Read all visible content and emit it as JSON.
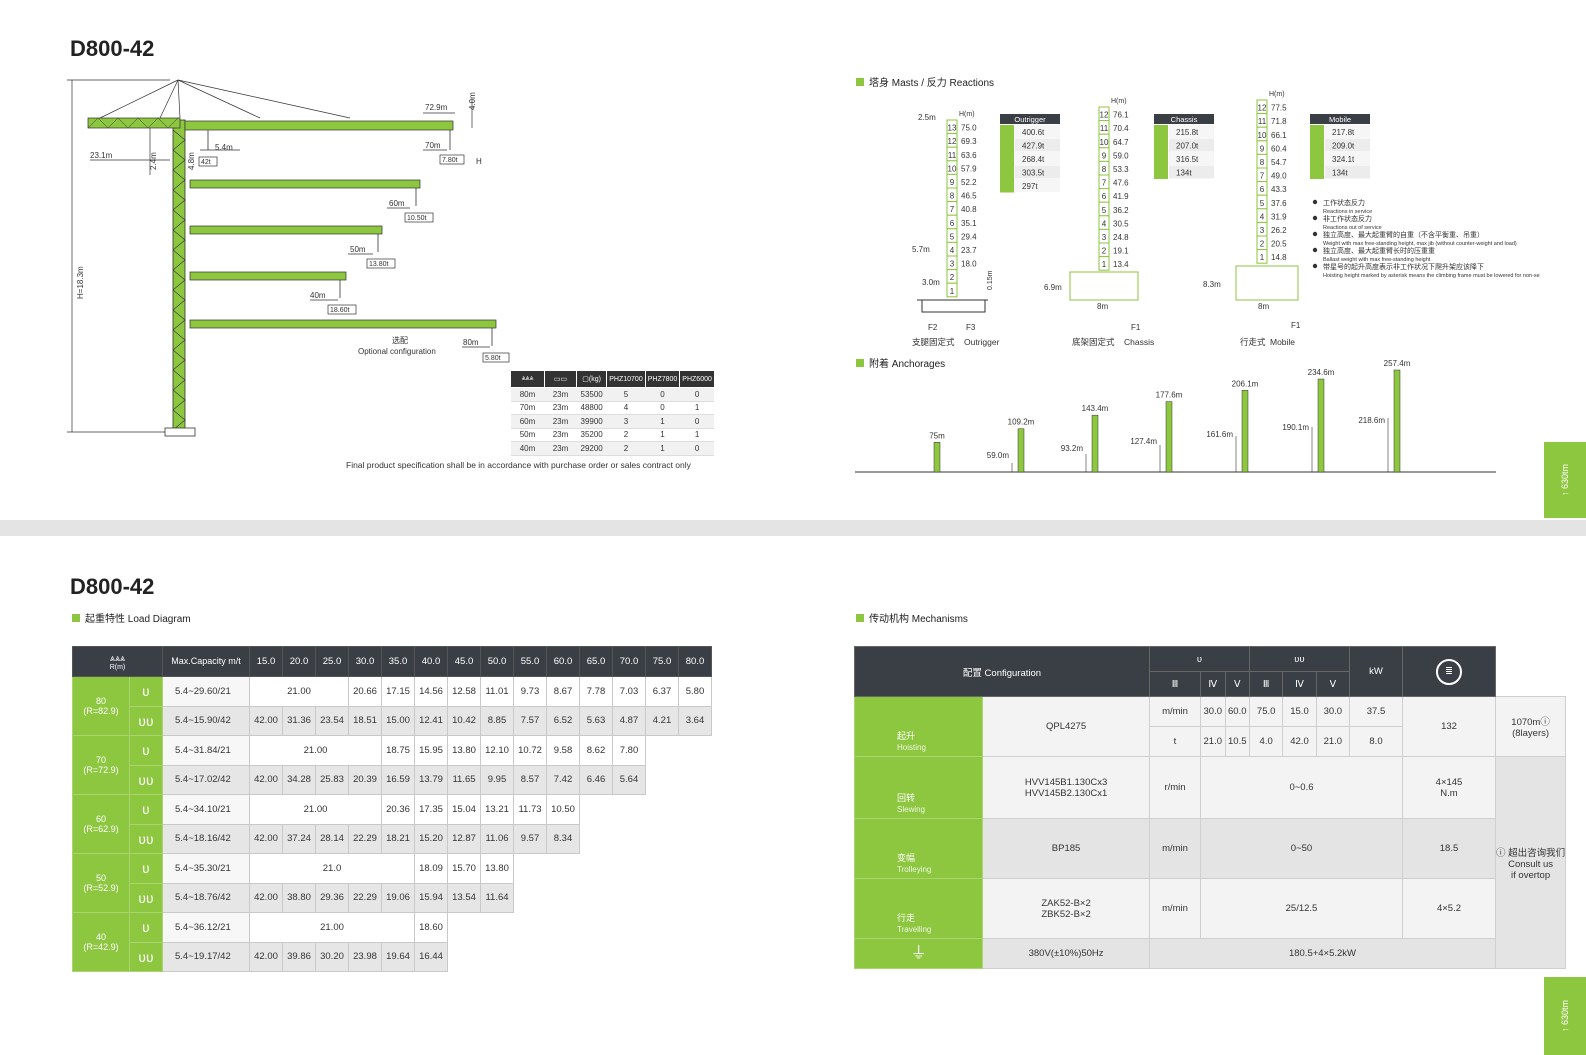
{
  "page1": {
    "title": "D800-42",
    "masts_section": "塔身 Masts / 反力 Reactions",
    "anchorages_section": "附着 Anchorages",
    "side_tab": "630tm",
    "crane": {
      "height_label": "H=18.3m",
      "mast_dim": "2.4m",
      "head_dim": "4.8m",
      "counter_jib": "23.1m",
      "tip_dim": "4.0m",
      "h_label": "H",
      "optional_cn": "选配",
      "optional_en": "Optional configuration",
      "jibs": [
        {
          "jib": "72.9m",
          "radius": "70m",
          "load": "7.80t",
          "near_dist": "5.4m",
          "near_load": "42t"
        },
        {
          "radius": "60m",
          "load": "10.50t"
        },
        {
          "radius": "50m",
          "load": "13.80t"
        },
        {
          "radius": "40m",
          "load": "18.60t"
        },
        {
          "radius": "80m",
          "load": "5.80t"
        }
      ]
    },
    "spec_table": {
      "headers": [
        "(kg)",
        "PHZ10700",
        "PHZ7800",
        "PHZ6000"
      ],
      "rows": [
        [
          "80m",
          "23m",
          "53500",
          "5",
          "0",
          "0"
        ],
        [
          "70m",
          "23m",
          "48800",
          "4",
          "0",
          "1"
        ],
        [
          "60m",
          "23m",
          "39900",
          "3",
          "1",
          "0"
        ],
        [
          "50m",
          "23m",
          "35200",
          "2",
          "1",
          "1"
        ],
        [
          "40m",
          "23m",
          "29200",
          "2",
          "1",
          "0"
        ]
      ]
    },
    "note": "Final product specification shall be in accordance with purchase order or sales contract only",
    "outrigger": {
      "label": "Outrigger",
      "caption_cn": "支腿固定式",
      "caption_en": "Outrigger",
      "hm": "H(m)",
      "top_dim": "2.5m",
      "mid_dim": "5.7m",
      "base_dim": "3.0m",
      "base_h": "0.15m",
      "f2": "F2",
      "f3": "F3",
      "sections": [
        [
          "13",
          "75.0"
        ],
        [
          "12",
          "69.3"
        ],
        [
          "11",
          "63.6"
        ],
        [
          "10",
          "57.9"
        ],
        [
          "9",
          "52.2"
        ],
        [
          "8",
          "46.5"
        ],
        [
          "7",
          "40.8"
        ],
        [
          "6",
          "35.1"
        ],
        [
          "5",
          "29.4"
        ],
        [
          "4",
          "23.7"
        ],
        [
          "3",
          "18.0"
        ],
        [
          "2",
          ""
        ],
        [
          "1",
          ""
        ]
      ],
      "reactions": [
        "400.6t",
        "427.9t",
        "268.4t",
        "303.5t",
        "297t"
      ]
    },
    "chassis": {
      "label": "Chassis",
      "caption_cn": "底架固定式",
      "caption_en": "Chassis",
      "hm": "H(m)",
      "side_dim": "6.9m",
      "base": "8m",
      "f1": "F1",
      "sections": [
        [
          "12",
          "76.1"
        ],
        [
          "11",
          "70.4"
        ],
        [
          "10",
          "64.7"
        ],
        [
          "9",
          "59.0"
        ],
        [
          "8",
          "53.3"
        ],
        [
          "7",
          "47.6"
        ],
        [
          "6",
          "41.9"
        ],
        [
          "5",
          "36.2"
        ],
        [
          "4",
          "30.5"
        ],
        [
          "3",
          "24.8"
        ],
        [
          "2",
          "19.1"
        ],
        [
          "1",
          "13.4"
        ]
      ],
      "reactions": [
        "215.8t",
        "207.0t",
        "316.5t",
        "134t"
      ]
    },
    "mobile": {
      "label": "Mobile",
      "caption_cn": "行走式",
      "caption_en": "Mobile",
      "hm": "H(m)",
      "side_dim": "8.3m",
      "base": "8m",
      "f1": "F1",
      "sections": [
        [
          "12",
          "77.5"
        ],
        [
          "11",
          "71.8"
        ],
        [
          "10",
          "66.1"
        ],
        [
          "9",
          "60.4"
        ],
        [
          "8",
          "54.7"
        ],
        [
          "7",
          "49.0"
        ],
        [
          "6",
          "43.3"
        ],
        [
          "5",
          "37.6"
        ],
        [
          "4",
          "31.9"
        ],
        [
          "3",
          "26.2"
        ],
        [
          "2",
          "20.5"
        ],
        [
          "1",
          "14.8"
        ]
      ],
      "reactions": [
        "217.8t",
        "209.0t",
        "324.1t",
        "134t"
      ]
    },
    "legend": [
      {
        "cn": "工作状态反力",
        "en": "Reactions in service"
      },
      {
        "cn": "非工作状态反力",
        "en": "Reactions out of service"
      },
      {
        "cn": "独立高度、最大起重臂的自重（不含平衡重、吊重）",
        "en": "Weight with max free-standing height, max jib (without counter-weight and load)"
      },
      {
        "cn": "独立高度、最大起重臂长时的压重重",
        "en": "Ballast weight with max free-standing height"
      },
      {
        "cn": "带星号的起升高度表示非工作状况下爬升架应该降下",
        "en": "Hoisting height marked by asterisk means the climbing frame must be lowered for non-service"
      }
    ],
    "anchorages": [
      {
        "top": "75m",
        "low": ""
      },
      {
        "top": "109.2m",
        "low": "59.0m"
      },
      {
        "top": "143.4m",
        "low": "93.2m"
      },
      {
        "top": "177.6m",
        "low": "127.4m"
      },
      {
        "top": "206.1m",
        "low": "161.6m"
      },
      {
        "top": "234.6m",
        "low": "190.1m"
      },
      {
        "top": "257.4m",
        "low": "218.6m"
      }
    ]
  },
  "page2": {
    "title": "D800-42",
    "load_section": "起重特性  Load Diagram",
    "mech_section": "传动机构  Mechanisms",
    "side_tab": "630tm",
    "load": {
      "head_r": "R(m)",
      "head_cap": "Max.Capacity m/t",
      "radii": [
        "15.0",
        "20.0",
        "25.0",
        "30.0",
        "35.0",
        "40.0",
        "45.0",
        "50.0",
        "55.0",
        "60.0",
        "65.0",
        "70.0",
        "75.0",
        "80.0"
      ],
      "groups": [
        {
          "jib": "80",
          "r": "(R=82.9)",
          "rows": [
            {
              "icon": "ʋ",
              "cap": "5.4~29.60/21",
              "span": "21.00",
              "vals": [
                "20.66",
                "17.15",
                "14.56",
                "12.58",
                "11.01",
                "9.73",
                "8.67",
                "7.78",
                "7.03",
                "6.37",
                "5.80"
              ]
            },
            {
              "icon": "ʋʋ",
              "cap": "5.4~15.90/42",
              "vals": [
                "42.00",
                "31.36",
                "23.54",
                "18.51",
                "15.00",
                "12.41",
                "10.42",
                "8.85",
                "7.57",
                "6.52",
                "5.63",
                "4.87",
                "4.21",
                "3.64"
              ]
            }
          ]
        },
        {
          "jib": "70",
          "r": "(R=72.9)",
          "rows": [
            {
              "icon": "ʋ",
              "cap": "5.4~31.84/21",
              "span": "21.00",
              "vals": [
                "18.75",
                "15.95",
                "13.80",
                "12.10",
                "10.72",
                "9.58",
                "8.62",
                "7.80"
              ]
            },
            {
              "icon": "ʋʋ",
              "cap": "5.4~17.02/42",
              "vals": [
                "42.00",
                "34.28",
                "25.83",
                "20.39",
                "16.59",
                "13.79",
                "11.65",
                "9.95",
                "8.57",
                "7.42",
                "6.46",
                "5.64"
              ]
            }
          ]
        },
        {
          "jib": "60",
          "r": "(R=62.9)",
          "rows": [
            {
              "icon": "ʋ",
              "cap": "5.4~34.10/21",
              "span": "21.00",
              "vals": [
                "20.36",
                "17.35",
                "15.04",
                "13.21",
                "11.73",
                "10.50"
              ]
            },
            {
              "icon": "ʋʋ",
              "cap": "5.4~18.16/42",
              "vals": [
                "42.00",
                "37.24",
                "28.14",
                "22.29",
                "18.21",
                "15.20",
                "12.87",
                "11.06",
                "9.57",
                "8.34"
              ]
            }
          ]
        },
        {
          "jib": "50",
          "r": "(R=52.9)",
          "rows": [
            {
              "icon": "ʋ",
              "cap": "5.4~35.30/21",
              "span": "21.0",
              "vals": [
                "18.09",
                "15.70",
                "13.80"
              ]
            },
            {
              "icon": "ʋʋ",
              "cap": "5.4~18.76/42",
              "vals": [
                "42.00",
                "38.80",
                "29.36",
                "22.29",
                "19.06",
                "15.94",
                "13.54",
                "11.64"
              ]
            }
          ]
        },
        {
          "jib": "40",
          "r": "(R=42.9)",
          "rows": [
            {
              "icon": "ʋ",
              "cap": "5.4~36.12/21",
              "span": "21.00",
              "vals": [
                "18.60"
              ]
            },
            {
              "icon": "ʋʋ",
              "cap": "5.4~19.17/42",
              "vals": [
                "42.00",
                "39.86",
                "30.20",
                "23.98",
                "19.64",
                "16.44"
              ]
            }
          ]
        }
      ]
    },
    "mech": {
      "config": "配置  Configuration",
      "gears": [
        "Ⅲ",
        "Ⅳ",
        "Ⅴ",
        "Ⅲ",
        "Ⅳ",
        "Ⅴ"
      ],
      "kw": "kW",
      "hoist": {
        "cn": "起升",
        "en": "Hoisting",
        "model": "QPL4275",
        "unit1": "m/min",
        "v1": [
          "30.0",
          "60.0",
          "75.0",
          "15.0",
          "30.0",
          "37.5"
        ],
        "unit2": "t",
        "v2": [
          "21.0",
          "10.5",
          "4.0",
          "42.0",
          "21.0",
          "8.0"
        ],
        "kw": "132",
        "rope": "1070m",
        "layers": "(8layers)"
      },
      "slew": {
        "cn": "回转",
        "en": "Slewing",
        "model1": "HVV145B1.130Cx3",
        "model2": "HVV145B2.130Cx1",
        "unit": "r/min",
        "speed": "0~0.6",
        "kw1": "4×145",
        "kw2": "N.m"
      },
      "troll": {
        "cn": "变幅",
        "en": "Trolleying",
        "model": "BP185",
        "unit": "m/min",
        "speed": "0~50",
        "kw": "18.5"
      },
      "travel": {
        "cn": "行走",
        "en": "Travelling",
        "model1": "ZAK52-B×2",
        "model2": "ZBK52-B×2",
        "unit": "m/min",
        "speed": "25/12.5",
        "kw": "4×5.2"
      },
      "consult_cn": "超出咨询我们",
      "consult_en1": "Consult us",
      "consult_en2": "if overtop",
      "power": {
        "volt": "380V(±10%)50Hz",
        "total": "180.5+4×5.2kW"
      }
    }
  }
}
